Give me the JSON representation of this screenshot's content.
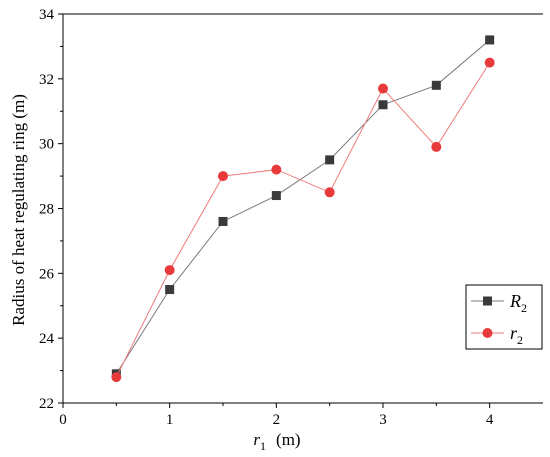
{
  "chart_data": {
    "type": "line",
    "title": "",
    "xlabel": "(m)",
    "xlabel_symbol": "r",
    "xlabel_sub": "1",
    "ylabel": "Radius of heat regulating ring  (m)",
    "xlim": [
      0,
      4.5
    ],
    "ylim": [
      22,
      34
    ],
    "xticks": [
      0,
      1,
      2,
      3,
      4
    ],
    "yticks": [
      22,
      24,
      26,
      28,
      30,
      32,
      34
    ],
    "grid": false,
    "legend_position": "right",
    "series": [
      {
        "name": "R",
        "sub": "2",
        "marker": "square",
        "color": "#3a3a3a",
        "line_color": "#7a7a7a",
        "x": [
          0.5,
          1,
          1.5,
          2,
          2.5,
          3,
          3.5,
          4
        ],
        "y": [
          22.9,
          25.5,
          27.6,
          28.4,
          29.5,
          31.2,
          31.8,
          33.2
        ]
      },
      {
        "name": "r",
        "sub": "2",
        "marker": "circle",
        "color": "#e83a3a",
        "line_color": "#ef7a7a",
        "x": [
          0.5,
          1,
          1.5,
          2,
          2.5,
          3,
          3.5,
          4
        ],
        "y": [
          22.8,
          26.1,
          29.0,
          29.2,
          28.5,
          31.7,
          29.9,
          32.5
        ]
      }
    ]
  }
}
